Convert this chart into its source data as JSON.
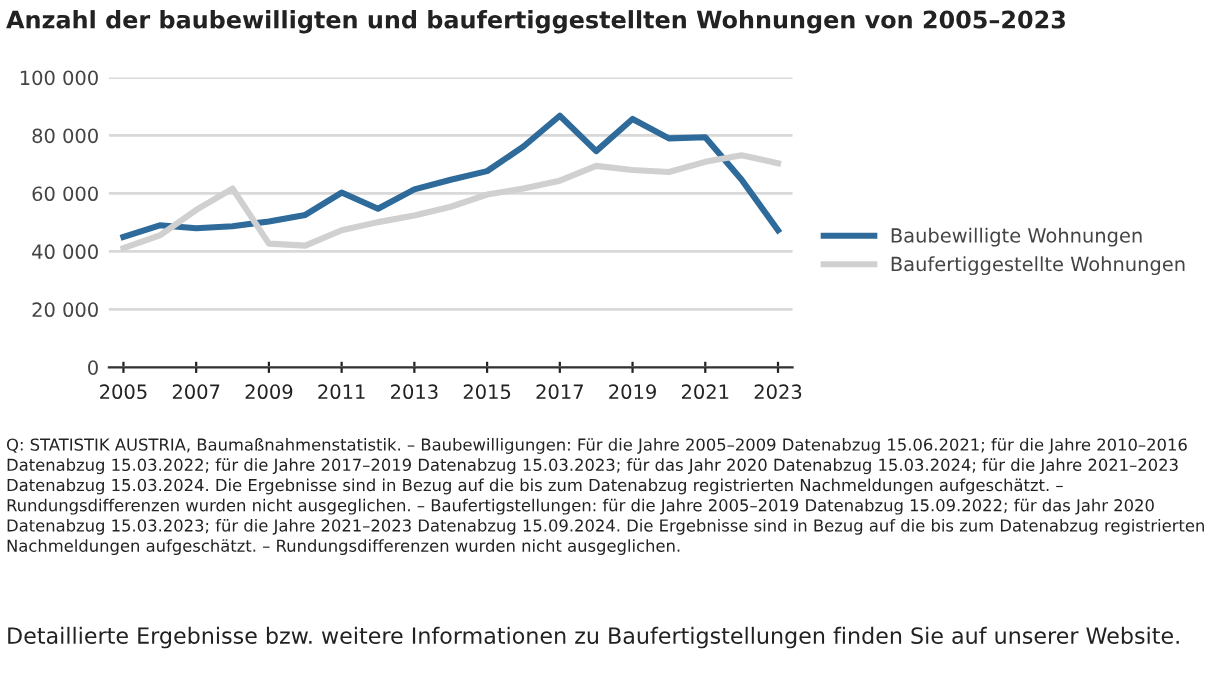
{
  "chart_data": {
    "type": "line",
    "title": "Anzahl der baubewilligten und baufertiggestellten Wohnungen von 2005–2023",
    "x": [
      2005,
      2006,
      2007,
      2008,
      2009,
      2010,
      2011,
      2012,
      2013,
      2014,
      2015,
      2016,
      2017,
      2018,
      2019,
      2020,
      2021,
      2022,
      2023
    ],
    "series": [
      {
        "name": "Baubewilligte Wohnungen",
        "color": "#2e6b9a",
        "values": [
          45000,
          49000,
          48000,
          48700,
          50300,
          52600,
          60300,
          54700,
          61400,
          64700,
          67700,
          76200,
          86800,
          74600,
          85700,
          79000,
          79400,
          64700,
          47300
        ]
      },
      {
        "name": "Baufertiggestellte Wohnungen",
        "color": "#d0d0d0",
        "values": [
          41100,
          45500,
          54300,
          61700,
          42700,
          42000,
          47300,
          50100,
          52400,
          55400,
          59600,
          61700,
          64400,
          69500,
          68100,
          67400,
          70900,
          73200,
          70400
        ]
      }
    ],
    "xlim": [
      2004.6,
      2023.4
    ],
    "xticks": [
      2005,
      2007,
      2009,
      2011,
      2013,
      2015,
      2017,
      2019,
      2021,
      2023
    ],
    "ylim": [
      0,
      100000
    ],
    "yticks": [
      {
        "value": 0,
        "label": "0"
      },
      {
        "value": 20000,
        "label": "20 000"
      },
      {
        "value": 40000,
        "label": "40 000"
      },
      {
        "value": 60000,
        "label": "60 000"
      },
      {
        "value": 80000,
        "label": "80 000"
      },
      {
        "value": 100000,
        "label": "100 000"
      }
    ],
    "grid": "y",
    "legend": "right",
    "marker": "none",
    "line_style": "solid",
    "annotations": [
      "Q: STATISTIK AUSTRIA, Baumaßnahmenstatistik. – Baubewilligungen: Für die Jahre 2005–2009 Datenabzug 15.06.2021; für die Jahre 2010–2016 Datenabzug 15.03.2022; für die Jahre 2017–2019 Datenabzug 15.03.2023; für das Jahr 2020 Datenabzug 15.03.2024; für die Jahre 2021–2023 Datenabzug 15.03.2024. Die Ergebnisse sind in Bezug auf die bis zum Datenabzug registrierten Nachmeldungen aufgeschätzt. – Rundungsdifferenzen wurden nicht ausgeglichen. – Baufertigstellungen: für die Jahre 2005–2019 Datenabzug 15.09.2022; für das Jahr 2020 Datenabzug 15.03.2023; für die Jahre 2021–2023 Datenabzug 15.09.2024. Die Ergebnisse sind in Bezug auf die bis zum Datenabzug registrierten Nachmeldungen aufgeschätzt. – Rundungsdifferenzen wurden nicht ausgeglichen.",
      "Detaillierte Ergebnisse bzw. weitere Informationen zu Baufertigstellungen finden Sie auf unserer Website."
    ]
  }
}
